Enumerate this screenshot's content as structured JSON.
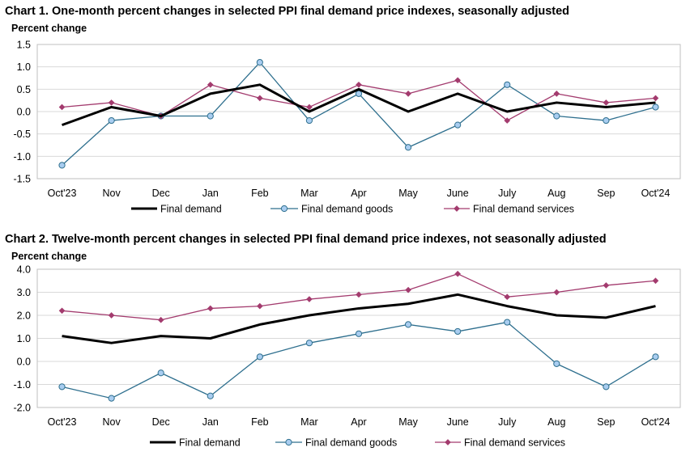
{
  "chart_data": [
    {
      "type": "line",
      "title": "Chart 1. One-month percent changes in selected PPI final demand price indexes, seasonally adjusted",
      "ylabel": "Percent change",
      "xlabel": "",
      "categories": [
        "Oct'23",
        "Nov",
        "Dec",
        "Jan",
        "Feb",
        "Mar",
        "Apr",
        "May",
        "June",
        "July",
        "Aug",
        "Sep",
        "Oct'24"
      ],
      "ylim": [
        -1.5,
        1.5
      ],
      "yticks": [
        1.5,
        1.0,
        0.5,
        0.0,
        -0.5,
        -1.0,
        -1.5
      ],
      "ytick_labels": [
        "1.5",
        "1.0",
        "0.5",
        "0.0",
        "-0.5",
        "-1.0",
        "-1.5"
      ],
      "grid": true,
      "legend_position": "bottom",
      "series": [
        {
          "name": "Final demand",
          "color": "#000000",
          "marker": "none",
          "values": [
            -0.3,
            0.1,
            -0.1,
            0.4,
            0.6,
            0.0,
            0.5,
            0.0,
            0.4,
            0.0,
            0.2,
            0.1,
            0.2
          ]
        },
        {
          "name": "Final demand goods",
          "color": "#2e6f8e",
          "marker": "circle",
          "values": [
            -1.2,
            -0.2,
            -0.1,
            -0.1,
            1.1,
            -0.2,
            0.4,
            -0.8,
            -0.3,
            0.6,
            -0.1,
            -0.2,
            0.1
          ]
        },
        {
          "name": "Final demand services",
          "color": "#a33b6e",
          "marker": "diamond",
          "values": [
            0.1,
            0.2,
            -0.1,
            0.6,
            0.3,
            0.1,
            0.6,
            0.4,
            0.7,
            -0.2,
            0.4,
            0.2,
            0.3
          ]
        }
      ]
    },
    {
      "type": "line",
      "title": "Chart 2. Twelve-month percent changes in selected PPI final demand price indexes, not seasonally adjusted",
      "ylabel": "Percent change",
      "xlabel": "",
      "categories": [
        "Oct'23",
        "Nov",
        "Dec",
        "Jan",
        "Feb",
        "Mar",
        "Apr",
        "May",
        "June",
        "July",
        "Aug",
        "Sep",
        "Oct'24"
      ],
      "ylim": [
        -2.0,
        4.0
      ],
      "yticks": [
        4.0,
        3.0,
        2.0,
        1.0,
        0.0,
        -1.0,
        -2.0
      ],
      "ytick_labels": [
        "4.0",
        "3.0",
        "2.0",
        "1.0",
        "0.0",
        "-1.0",
        "-2.0"
      ],
      "grid": true,
      "legend_position": "bottom",
      "series": [
        {
          "name": "Final demand",
          "color": "#000000",
          "marker": "none",
          "values": [
            1.1,
            0.8,
            1.1,
            1.0,
            1.6,
            2.0,
            2.3,
            2.5,
            2.9,
            2.4,
            2.0,
            1.9,
            2.4
          ]
        },
        {
          "name": "Final demand goods",
          "color": "#2e6f8e",
          "marker": "circle",
          "values": [
            -1.1,
            -1.6,
            -0.5,
            -1.5,
            0.2,
            0.8,
            1.2,
            1.6,
            1.3,
            1.7,
            -0.1,
            -1.1,
            0.2
          ]
        },
        {
          "name": "Final demand services",
          "color": "#a33b6e",
          "marker": "diamond",
          "values": [
            2.2,
            2.0,
            1.8,
            2.3,
            2.4,
            2.7,
            2.9,
            3.1,
            3.8,
            2.8,
            3.0,
            3.3,
            3.5
          ]
        }
      ]
    }
  ]
}
